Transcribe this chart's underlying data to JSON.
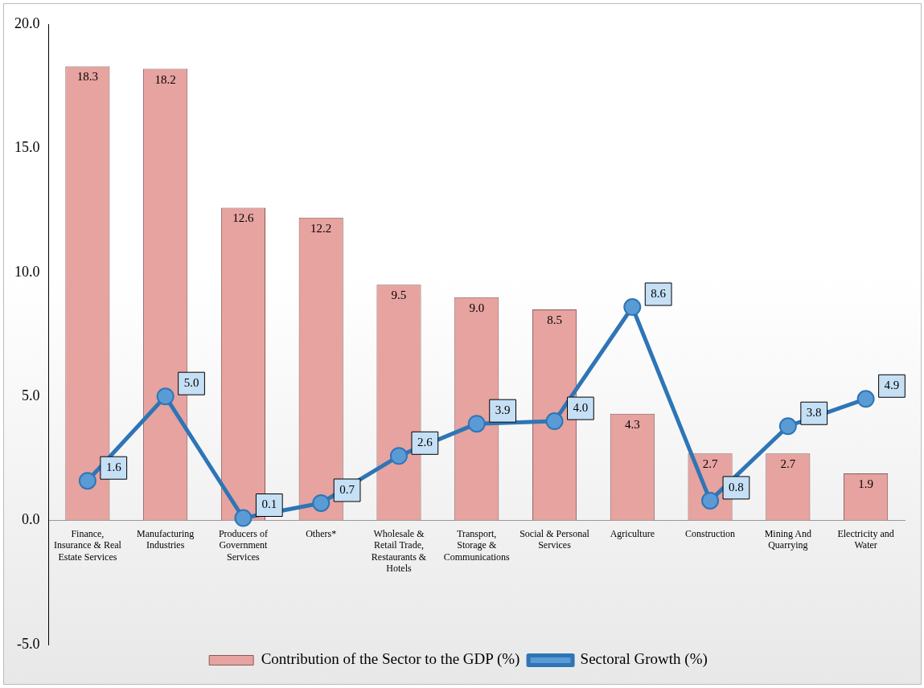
{
  "chart_data": {
    "type": "bar",
    "categories": [
      "Finance, Insurance & Real Estate Services",
      "Manufacturing Industries",
      "Producers of Government Services",
      "Others*",
      "Wholesale & Retail Trade, Restaurants & Hotels",
      "Transport, Storage & Communications",
      "Social & Personal Services",
      "Agriculture",
      "Construction",
      "Mining And Quarrying",
      "Electricity and Water"
    ],
    "series": [
      {
        "name": "Contribution of the Sector to the GDP (%)",
        "color": "#e6a3a0",
        "values": [
          18.3,
          18.2,
          12.6,
          12.2,
          9.5,
          9.0,
          8.5,
          4.3,
          2.7,
          2.7,
          1.9
        ],
        "value_labels": [
          "18.3",
          "18.2",
          "12.6",
          "12.2",
          "9.5",
          "9.0",
          "8.5",
          "4.3",
          "2.7",
          "2.7",
          "1.9"
        ]
      },
      {
        "name": "Sectoral Growth (%)",
        "type": "line",
        "color": "#2e75b6",
        "values": [
          1.6,
          5.0,
          0.1,
          0.7,
          2.6,
          3.9,
          4.0,
          8.6,
          0.8,
          3.8,
          4.9
        ],
        "value_labels": [
          "1.6",
          "5.0",
          "0.1",
          "0.7",
          "2.6",
          "3.9",
          "4.0",
          "8.6",
          "0.8",
          "3.8",
          "4.9"
        ]
      }
    ],
    "ylim": [
      -5,
      20
    ],
    "yticks": [
      {
        "value": -5,
        "label": "-5.0"
      },
      {
        "value": 0,
        "label": "0.0"
      },
      {
        "value": 5,
        "label": "5.0"
      },
      {
        "value": 10,
        "label": "10.0"
      },
      {
        "value": 15,
        "label": "15.0"
      },
      {
        "value": 20,
        "label": "20.0"
      }
    ],
    "grid": false,
    "legend": "bottom",
    "marker": "circle",
    "line_style": "solid"
  }
}
